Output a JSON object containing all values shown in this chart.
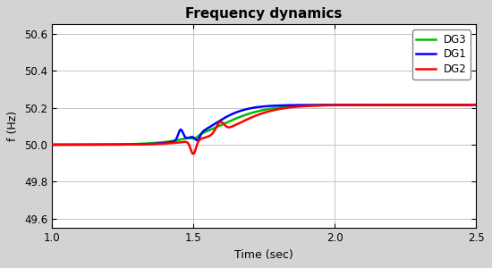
{
  "title": "Frequency dynamics",
  "xlabel": "Time (sec)",
  "ylabel": "f (Hz)",
  "xlim": [
    1,
    2.5
  ],
  "ylim": [
    49.55,
    50.65
  ],
  "yticks": [
    49.6,
    49.8,
    50.0,
    50.2,
    50.4,
    50.6
  ],
  "xticks": [
    1,
    1.5,
    2,
    2.5
  ],
  "outer_bg_color": "#d3d3d3",
  "plot_bg_color": "#ffffff",
  "dg1_color": "#0000ff",
  "dg2_color": "#ff0000",
  "dg3_color": "#00bb00",
  "legend_labels": [
    "DG1",
    "DG2",
    "DG3"
  ],
  "line_width": 1.8,
  "settle_value": 50.215
}
